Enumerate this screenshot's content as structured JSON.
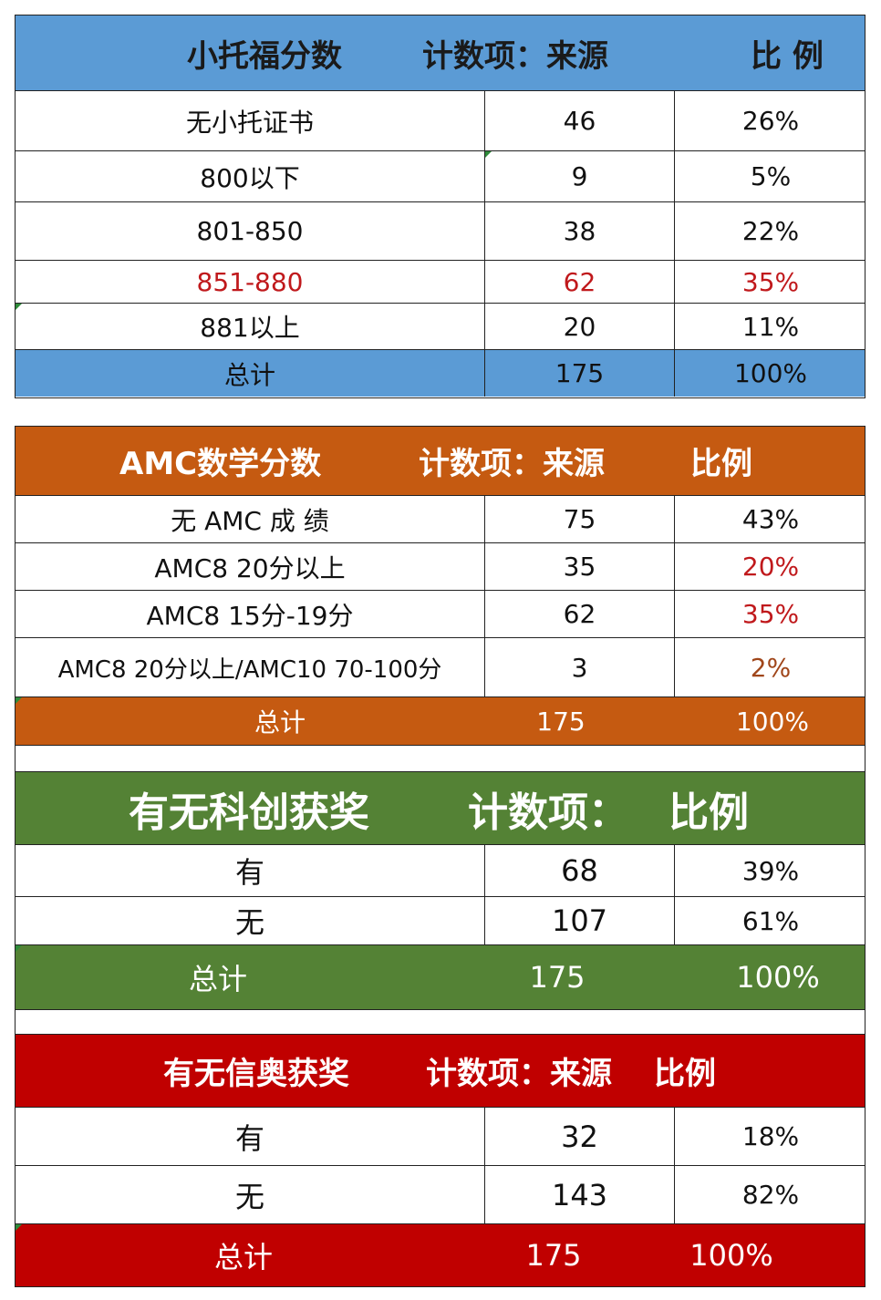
{
  "colors": {
    "blue": "#5b9bd5",
    "orange": "#c55a11",
    "green": "#548235",
    "red": "#c00000",
    "accent_text": "#c0191c"
  },
  "toefl": {
    "header": {
      "col1": "小托福分数",
      "col2": "计数项：来源",
      "col3": "比 例"
    },
    "rows": [
      {
        "label": "无小托证书",
        "count": "46",
        "ratio": "26%"
      },
      {
        "label": "800以下",
        "count": "9",
        "ratio": "5%"
      },
      {
        "label": "801-850",
        "count": "38",
        "ratio": "22%"
      },
      {
        "label": "851-880",
        "count": "62",
        "ratio": "35%"
      },
      {
        "label": "881以上",
        "count": "20",
        "ratio": "11%"
      }
    ],
    "total": {
      "label": "总计",
      "count": "175",
      "ratio": "100%"
    }
  },
  "amc": {
    "header": {
      "col1": "AMC数学分数",
      "col2": "计数项：来源",
      "col3": "比例"
    },
    "rows": [
      {
        "label": "无 AMC 成 绩",
        "count": "75",
        "ratio": "43%"
      },
      {
        "label": "AMC8 20分以上",
        "count": "35",
        "ratio": "20%"
      },
      {
        "label": "AMC8 15分-19分",
        "count": "62",
        "ratio": "35%"
      },
      {
        "label": "AMC8 20分以上/AMC10 70-100分",
        "count": "3",
        "ratio": "2%"
      }
    ],
    "total": {
      "label": "总计",
      "count": "175",
      "ratio": "100%"
    }
  },
  "science": {
    "header": {
      "col1": "有无科创获奖",
      "col2": "计数项：",
      "col3": "比例"
    },
    "rows": [
      {
        "label": "有",
        "count": "68",
        "ratio": "39%"
      },
      {
        "label": "无",
        "count": "107",
        "ratio": "61%"
      }
    ],
    "total": {
      "label": "总计",
      "count": "175",
      "ratio": "100%"
    }
  },
  "informatics": {
    "header": {
      "col1": "有无信奥获奖",
      "col2": "计数项：来源",
      "col3": "比例"
    },
    "rows": [
      {
        "label": "有",
        "count": "32",
        "ratio": "18%"
      },
      {
        "label": "无",
        "count": "143",
        "ratio": "82%"
      }
    ],
    "total": {
      "label": "总计",
      "count": "175",
      "ratio": "100%"
    }
  }
}
